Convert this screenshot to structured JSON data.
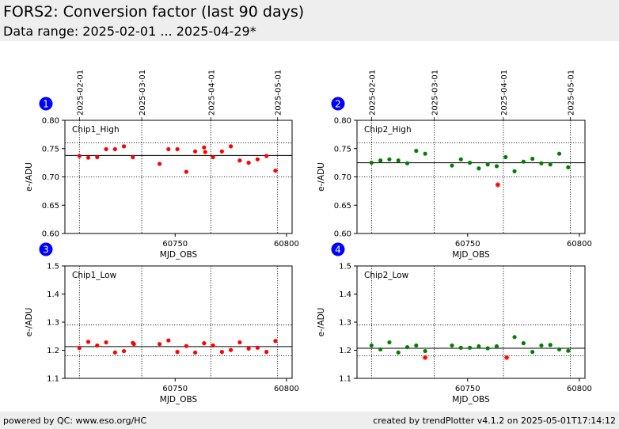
{
  "header": {
    "title": "FORS2: Conversion factor (last 90 days)",
    "subtitle": "Data range: 2025-02-01 ... 2025-04-29*"
  },
  "footer": {
    "left": "powered by QC: www.eso.org/HC",
    "right": "created by trendPlotter v4.1.2 on 2025-05-01T17:14:12"
  },
  "colors": {
    "red": "#ff0000",
    "green": "#008000",
    "badge": "#0000ff",
    "outlier": "#ff0000"
  },
  "chart_data": [
    {
      "type": "scatter",
      "panel_number": "1",
      "label": "Chip1_High",
      "xlabel": "MJD_OBS",
      "ylabel": "e-/ADU",
      "xlim": [
        60700.5,
        60802.5
      ],
      "ylim": [
        0.6,
        0.8
      ],
      "yticks": [
        "0.60",
        "0.65",
        "0.70",
        "0.75",
        "0.80"
      ],
      "xticks": [
        60750,
        60800
      ],
      "date_ticks": [
        {
          "mjd": 60707,
          "label": "2025-02-01"
        },
        {
          "mjd": 60735,
          "label": "2025-03-01"
        },
        {
          "mjd": 60766,
          "label": "2025-04-01"
        },
        {
          "mjd": 60796,
          "label": "2025-05-01"
        }
      ],
      "ref_lines": [
        0.738
      ],
      "limit_lines": [
        0.7,
        0.76
      ],
      "point_color": "#ff0000",
      "points": [
        [
          60707,
          0.737
        ],
        [
          60711,
          0.734
        ],
        [
          60715,
          0.735
        ],
        [
          60719,
          0.749
        ],
        [
          60723,
          0.749
        ],
        [
          60727,
          0.754
        ],
        [
          60731,
          0.735
        ],
        [
          60743,
          0.723
        ],
        [
          60747,
          0.749
        ],
        [
          60751,
          0.749
        ],
        [
          60755,
          0.709
        ],
        [
          60759,
          0.745
        ],
        [
          60763,
          0.752
        ],
        [
          60763.5,
          0.744
        ],
        [
          60767,
          0.735
        ],
        [
          60771,
          0.745
        ],
        [
          60775,
          0.754
        ],
        [
          60779,
          0.729
        ],
        [
          60783,
          0.725
        ],
        [
          60787,
          0.731
        ],
        [
          60791,
          0.737
        ],
        [
          60795,
          0.711
        ]
      ],
      "outliers": []
    },
    {
      "type": "scatter",
      "panel_number": "2",
      "label": "Chip2_High",
      "xlabel": "MJD_OBS",
      "ylabel": "e-/ADU",
      "xlim": [
        60700.5,
        60802.5
      ],
      "ylim": [
        0.6,
        0.8
      ],
      "yticks": [
        "0.60",
        "0.65",
        "0.70",
        "0.75",
        "0.80"
      ],
      "xticks": [
        60750,
        60800
      ],
      "date_ticks": [
        {
          "mjd": 60707,
          "label": "2025-02-01"
        },
        {
          "mjd": 60735,
          "label": "2025-03-01"
        },
        {
          "mjd": 60766,
          "label": "2025-04-01"
        },
        {
          "mjd": 60796,
          "label": "2025-05-01"
        }
      ],
      "ref_lines": [
        0.725
      ],
      "limit_lines": [
        0.7,
        0.76
      ],
      "point_color": "#008000",
      "points": [
        [
          60707,
          0.725
        ],
        [
          60711,
          0.729
        ],
        [
          60715,
          0.731
        ],
        [
          60719,
          0.729
        ],
        [
          60723,
          0.724
        ],
        [
          60727,
          0.746
        ],
        [
          60731,
          0.741
        ],
        [
          60743,
          0.72
        ],
        [
          60747,
          0.731
        ],
        [
          60751,
          0.725
        ],
        [
          60755,
          0.715
        ],
        [
          60759,
          0.722
        ],
        [
          60763,
          0.719
        ],
        [
          60767,
          0.735
        ],
        [
          60771,
          0.71
        ],
        [
          60775,
          0.727
        ],
        [
          60779,
          0.732
        ],
        [
          60783,
          0.724
        ],
        [
          60787,
          0.722
        ],
        [
          60791,
          0.741
        ],
        [
          60795,
          0.717
        ]
      ],
      "outliers": [
        [
          60763.5,
          0.686
        ]
      ]
    },
    {
      "type": "scatter",
      "panel_number": "3",
      "label": "Chip1_Low",
      "xlabel": "MJD_OBS",
      "ylabel": "e-/ADU",
      "xlim": [
        60700.5,
        60802.5
      ],
      "ylim": [
        1.1,
        1.5
      ],
      "yticks": [
        "1.1",
        "1.2",
        "1.3",
        "1.4",
        "1.5"
      ],
      "xticks": [
        60750,
        60800
      ],
      "date_ticks": [
        {
          "mjd": 60707,
          "label": ""
        },
        {
          "mjd": 60735,
          "label": ""
        },
        {
          "mjd": 60766,
          "label": ""
        },
        {
          "mjd": 60796,
          "label": ""
        }
      ],
      "ref_lines": [
        1.213
      ],
      "limit_lines": [
        1.18,
        1.29
      ],
      "point_color": "#ff0000",
      "points": [
        [
          60707,
          1.208
        ],
        [
          60711,
          1.23
        ],
        [
          60715,
          1.217
        ],
        [
          60719,
          1.228
        ],
        [
          60723,
          1.192
        ],
        [
          60727,
          1.197
        ],
        [
          60731,
          1.226
        ],
        [
          60731.5,
          1.222
        ],
        [
          60743,
          1.222
        ],
        [
          60747,
          1.235
        ],
        [
          60751,
          1.194
        ],
        [
          60755,
          1.215
        ],
        [
          60759,
          1.192
        ],
        [
          60763,
          1.225
        ],
        [
          60767,
          1.217
        ],
        [
          60771,
          1.194
        ],
        [
          60775,
          1.201
        ],
        [
          60779,
          1.228
        ],
        [
          60783,
          1.206
        ],
        [
          60787,
          1.209
        ],
        [
          60791,
          1.194
        ],
        [
          60795,
          1.233
        ]
      ],
      "outliers": []
    },
    {
      "type": "scatter",
      "panel_number": "4",
      "label": "Chip2_Low",
      "xlabel": "MJD_OBS",
      "ylabel": "e-/ADU",
      "xlim": [
        60700.5,
        60802.5
      ],
      "ylim": [
        1.1,
        1.5
      ],
      "yticks": [
        "1.1",
        "1.2",
        "1.3",
        "1.4",
        "1.5"
      ],
      "xticks": [
        60750,
        60800
      ],
      "date_ticks": [
        {
          "mjd": 60707,
          "label": ""
        },
        {
          "mjd": 60735,
          "label": ""
        },
        {
          "mjd": 60766,
          "label": ""
        },
        {
          "mjd": 60796,
          "label": ""
        }
      ],
      "ref_lines": [
        1.207
      ],
      "limit_lines": [
        1.18,
        1.29
      ],
      "point_color": "#008000",
      "points": [
        [
          60707,
          1.217
        ],
        [
          60711,
          1.203
        ],
        [
          60715,
          1.228
        ],
        [
          60719,
          1.192
        ],
        [
          60723,
          1.211
        ],
        [
          60727,
          1.217
        ],
        [
          60731,
          1.197
        ],
        [
          60743,
          1.217
        ],
        [
          60747,
          1.209
        ],
        [
          60751,
          1.209
        ],
        [
          60755,
          1.214
        ],
        [
          60759,
          1.207
        ],
        [
          60763,
          1.214
        ],
        [
          60771,
          1.247
        ],
        [
          60775,
          1.225
        ],
        [
          60779,
          1.194
        ],
        [
          60783,
          1.217
        ],
        [
          60787,
          1.219
        ],
        [
          60791,
          1.203
        ],
        [
          60795,
          1.198
        ]
      ],
      "outliers": [
        [
          60731,
          1.174
        ],
        [
          60767.5,
          1.174
        ]
      ]
    }
  ]
}
